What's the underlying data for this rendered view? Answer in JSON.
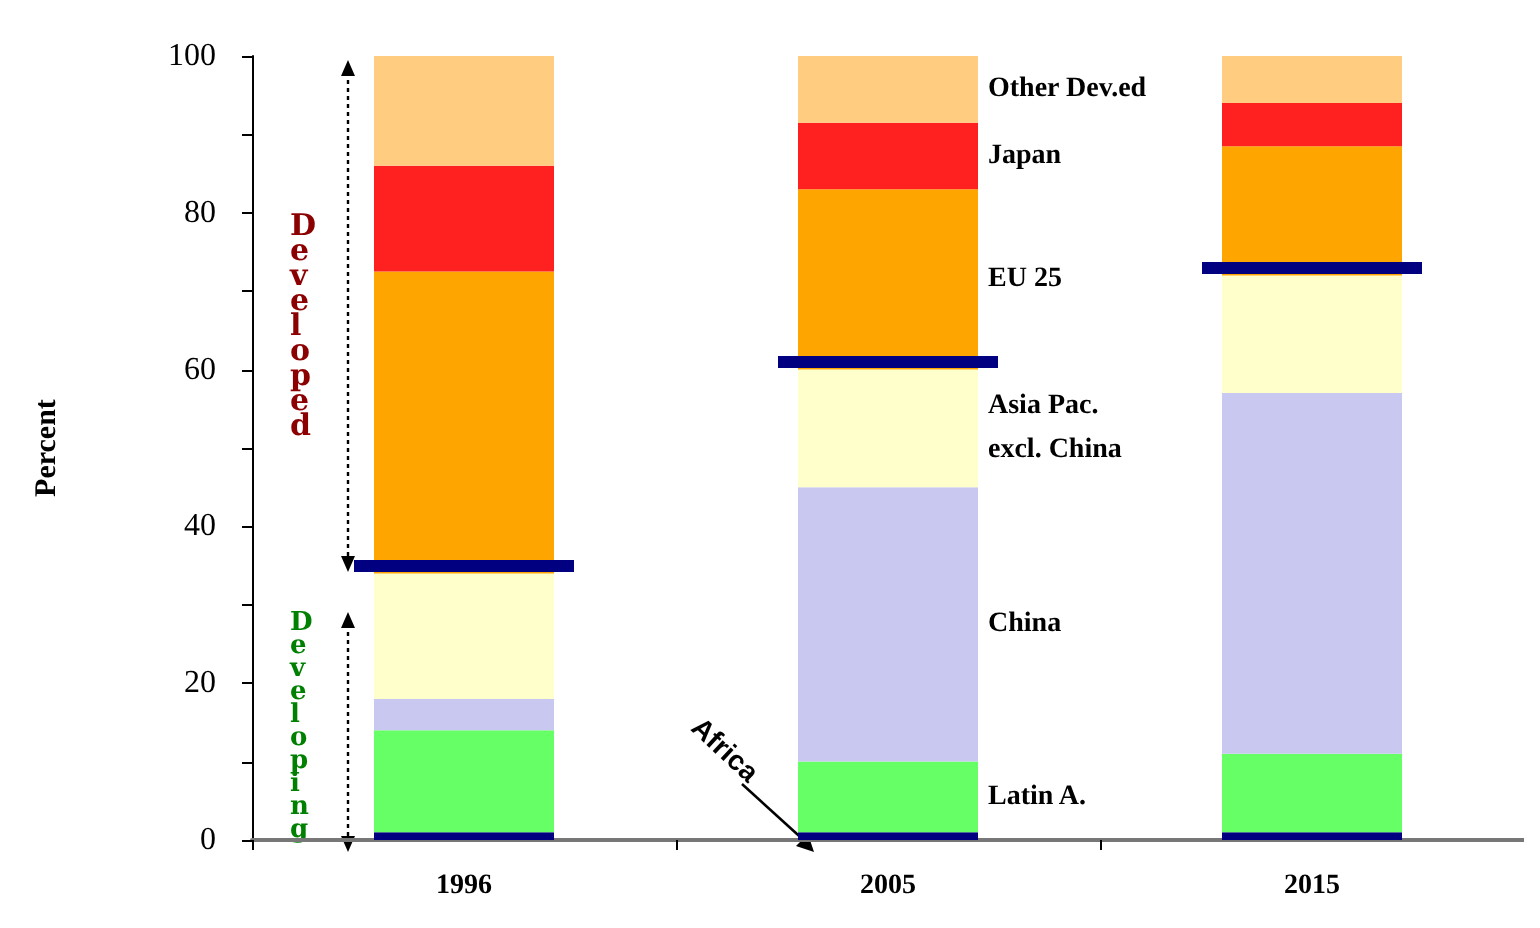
{
  "chart_data": {
    "type": "bar",
    "stacked": true,
    "ylabel": "Percent",
    "categories": [
      "1996",
      "2005",
      "2015"
    ],
    "ylim": [
      0,
      100
    ],
    "yticks": [
      0,
      {
        "value": 10,
        "label": null
      },
      20,
      {
        "value": 30,
        "label": null
      },
      40,
      {
        "value": 50,
        "label": null
      },
      60,
      {
        "value": 70,
        "label": null
      },
      80,
      {
        "value": 90,
        "label": null
      },
      100
    ],
    "series": [
      {
        "name": "Africa",
        "color": "#000080",
        "values": [
          1,
          1,
          1
        ]
      },
      {
        "name": "Latin A.",
        "color": "#66ff66",
        "values": [
          13,
          9,
          10
        ]
      },
      {
        "name": "China",
        "color": "#c8c8f0",
        "values": [
          4,
          35,
          46
        ]
      },
      {
        "name": "Asia Pac.\nexcl. China",
        "color": "#ffffcc",
        "values": [
          16,
          15,
          15
        ]
      },
      {
        "name": "EU 25",
        "color": "#ffa500",
        "values": [
          38.5,
          23,
          16.5
        ]
      },
      {
        "name": "Japan",
        "color": "#ff2020",
        "values": [
          13.5,
          8.5,
          5.5
        ]
      },
      {
        "name": "Other Dev.ed",
        "color": "#ffcc80",
        "values": [
          14,
          8.5,
          6
        ]
      }
    ],
    "annotations": [
      "Developed",
      "Developing"
    ],
    "grid": false,
    "legend": false
  }
}
